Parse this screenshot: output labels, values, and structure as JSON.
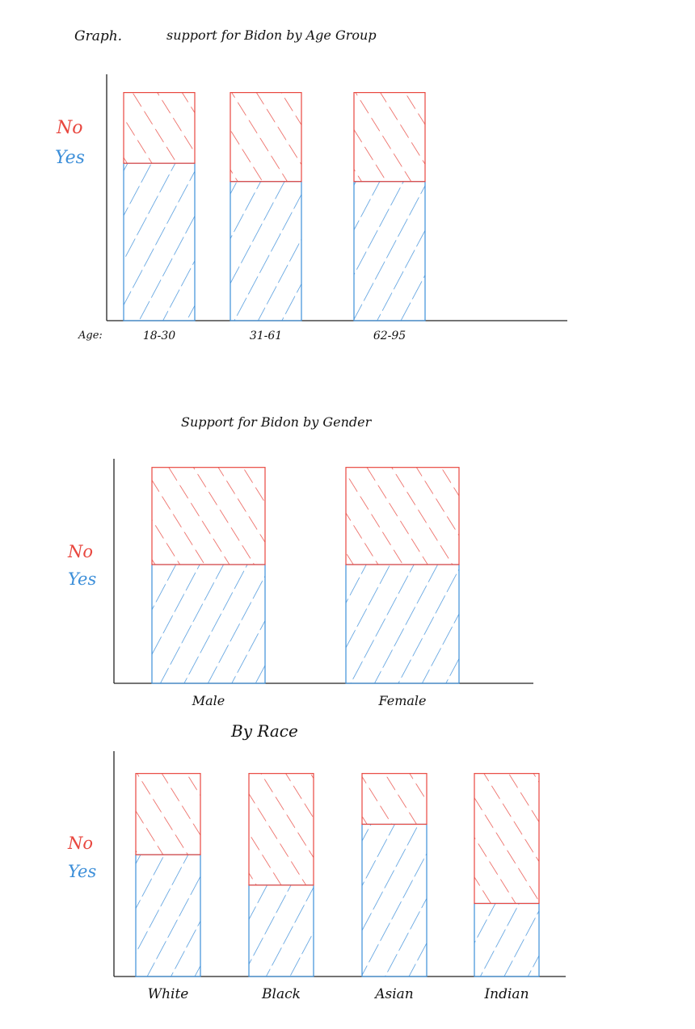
{
  "header": {
    "graph_label": "Graph."
  },
  "colors": {
    "no": "#e8473f",
    "yes": "#3d8fd9",
    "axis": "#222222"
  },
  "chart_data": [
    {
      "type": "bar",
      "stacked": true,
      "title": "support for Bidon by Age Group",
      "xlabel": "Age:",
      "ylabel": "",
      "categories": [
        "18-30",
        "31-61",
        "62-95"
      ],
      "series": [
        {
          "name": "Yes",
          "values": [
            0.69,
            0.61,
            0.61
          ]
        },
        {
          "name": "No",
          "values": [
            0.31,
            0.39,
            0.39
          ]
        }
      ],
      "ylim": [
        0,
        1.08
      ],
      "legend": {
        "position": "left",
        "entries": [
          "No",
          "Yes"
        ]
      },
      "grid": false
    },
    {
      "type": "bar",
      "stacked": true,
      "title": "Support for Bidon by Gender",
      "xlabel": "",
      "ylabel": "",
      "categories": [
        "Male",
        "Female"
      ],
      "series": [
        {
          "name": "Yes",
          "values": [
            0.55,
            0.55
          ]
        },
        {
          "name": "No",
          "values": [
            0.45,
            0.45
          ]
        }
      ],
      "ylim": [
        0,
        1.04
      ],
      "legend": {
        "position": "left",
        "entries": [
          "No",
          "Yes"
        ]
      },
      "grid": false
    },
    {
      "type": "bar",
      "stacked": true,
      "title": "By Race",
      "xlabel": "",
      "ylabel": "",
      "categories": [
        "White",
        "Black",
        "Asian",
        "Indian"
      ],
      "series": [
        {
          "name": "Yes",
          "values": [
            0.6,
            0.45,
            0.75,
            0.36
          ]
        },
        {
          "name": "No",
          "values": [
            0.4,
            0.55,
            0.25,
            0.64
          ]
        }
      ],
      "ylim": [
        0,
        1.11
      ],
      "legend": {
        "position": "left",
        "entries": [
          "No",
          "Yes"
        ]
      },
      "grid": false
    }
  ]
}
